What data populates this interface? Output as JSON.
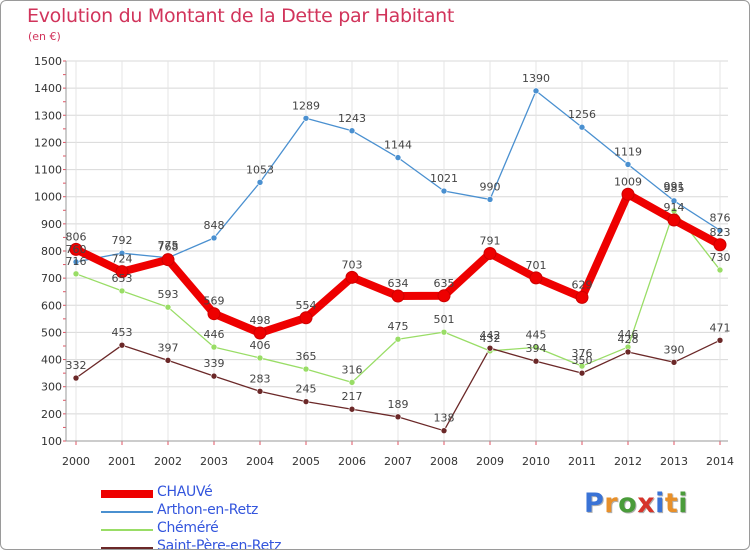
{
  "title": "Evolution du Montant de la Dette par Habitant",
  "subtitle": "(en €)",
  "logo": {
    "text": "Proxiti",
    "letter_colors": [
      "#3a73d6",
      "#e8902a",
      "#4a9c3a",
      "#d6342b",
      "#3a73d6",
      "#e8902a",
      "#4a9c3a"
    ]
  },
  "chart_data": {
    "type": "line",
    "title": "Evolution du Montant de la Dette par Habitant",
    "subtitle": "(en €)",
    "xlabel": "",
    "ylabel": "",
    "ylim": [
      100,
      1500
    ],
    "yticks": [
      "100",
      "200",
      "300",
      "400",
      "500",
      "600",
      "700",
      "800",
      "900",
      "1000",
      "1100",
      "1200",
      "1300",
      "1400",
      "1500"
    ],
    "categories": [
      "2000",
      "2001",
      "2002",
      "2003",
      "2004",
      "2005",
      "2006",
      "2007",
      "2008",
      "2009",
      "2010",
      "2011",
      "2012",
      "2013",
      "2014"
    ],
    "grid": true,
    "legend_position": "bottom-left",
    "series": [
      {
        "name": "CHAUVé",
        "color": "#ee0000",
        "highlight": true,
        "values": [
          806,
          724,
          768,
          569,
          498,
          554,
          703,
          634,
          635,
          791,
          701,
          629,
          1009,
          914,
          823
        ],
        "labels": [
          "806",
          "724",
          "768",
          "569",
          "498",
          "554",
          "703",
          "634",
          "635",
          "791",
          "701",
          "629",
          "1009",
          "914",
          "823"
        ]
      },
      {
        "name": "Arthon-en-Retz",
        "color": "#4a90d0",
        "values": [
          760,
          792,
          775,
          848,
          1053,
          1289,
          1243,
          1144,
          1021,
          990,
          1390,
          1256,
          1119,
          985,
          876
        ],
        "labels": [
          "760",
          "792",
          "775",
          "848",
          "1053",
          "1289",
          "1243",
          "1144",
          "1021",
          "990",
          "1390",
          "1256",
          "1119",
          "985",
          "876"
        ]
      },
      {
        "name": "Chéméré",
        "color": "#99dd66",
        "values": [
          716,
          653,
          593,
          446,
          406,
          365,
          316,
          475,
          501,
          432,
          445,
          376,
          446,
          948,
          730
        ],
        "labels": [
          "716",
          "653",
          "593",
          "446",
          "406",
          "365",
          "316",
          "475",
          "501",
          "432",
          "445",
          "376",
          "446",
          "",
          "730"
        ]
      },
      {
        "name": "Saint-Père-en-Retz",
        "color": "#6b2828",
        "values": [
          332,
          453,
          397,
          339,
          283,
          245,
          217,
          189,
          138,
          442,
          394,
          350,
          428,
          390,
          471
        ],
        "labels": [
          "332",
          "453",
          "397",
          "339",
          "283",
          "245",
          "217",
          "189",
          "138",
          "442",
          "394",
          "350",
          "428",
          "390",
          "471"
        ]
      }
    ],
    "extra_labels": [
      "991"
    ]
  }
}
